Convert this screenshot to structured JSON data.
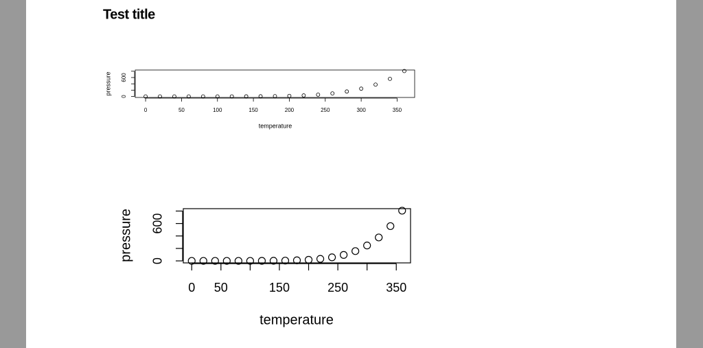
{
  "title": "Test title",
  "chart_data": [
    {
      "type": "scatter",
      "color": "#000000",
      "x": [
        0,
        20,
        40,
        60,
        80,
        100,
        120,
        140,
        160,
        180,
        200,
        220,
        240,
        260,
        280,
        300,
        320,
        340,
        360
      ],
      "y": [
        0.0002,
        0.0012,
        0.006,
        0.03,
        0.09,
        0.27,
        0.75,
        1.85,
        4.2,
        8.8,
        17.3,
        32.1,
        57,
        96,
        157,
        247,
        376,
        558,
        806
      ],
      "xlabel": "temperature",
      "ylabel": "pressure",
      "xlim": [
        -14.4,
        374.4
      ],
      "ylim": [
        -32.24,
        838.24
      ],
      "xticks": [
        0,
        50,
        100,
        150,
        200,
        250,
        300,
        350
      ],
      "xminorticks": [],
      "yticks": [
        0,
        600
      ],
      "yminorticks": [
        200,
        400,
        800
      ]
    },
    {
      "type": "scatter",
      "color": "#000000",
      "x": [
        0,
        20,
        40,
        60,
        80,
        100,
        120,
        140,
        160,
        180,
        200,
        220,
        240,
        260,
        280,
        300,
        320,
        340,
        360
      ],
      "y": [
        0.0002,
        0.0012,
        0.006,
        0.03,
        0.09,
        0.27,
        0.75,
        1.85,
        4.2,
        8.8,
        17.3,
        32.1,
        57,
        96,
        157,
        247,
        376,
        558,
        806
      ],
      "xlabel": "temperature",
      "ylabel": "pressure",
      "xlim": [
        -14.4,
        374.4
      ],
      "ylim": [
        -32.24,
        838.24
      ],
      "xticks": [
        0,
        50,
        150,
        250,
        350
      ],
      "xminorticks": [
        100,
        200,
        300
      ],
      "yticks": [
        0,
        600
      ],
      "yminorticks": [
        200,
        400,
        800
      ]
    }
  ]
}
